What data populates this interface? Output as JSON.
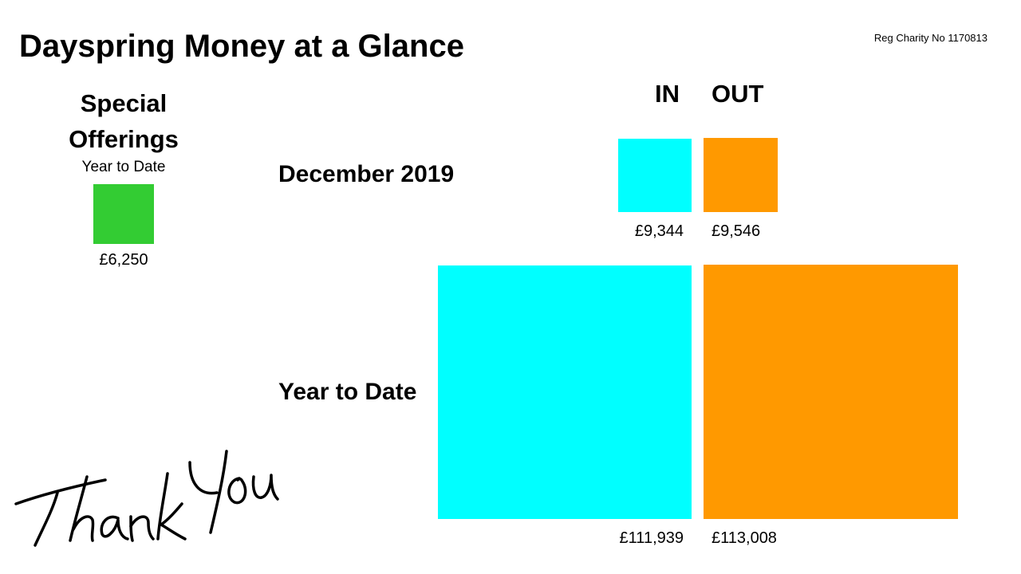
{
  "title": "Dayspring Money at a Glance",
  "charity": "Reg Charity No 1170813",
  "special_offerings": {
    "heading_line1": "Special",
    "heading_line2": "Offerings",
    "subheading": "Year to Date",
    "value": 6250,
    "label": "£6,250",
    "color": "#33CC33"
  },
  "thank_you": "Thank You",
  "chart_data": {
    "type": "bar",
    "title": "",
    "encoding": "square area proportional to value",
    "columns": [
      "IN",
      "OUT"
    ],
    "rows": [
      "December 2019",
      "Year to Date"
    ],
    "series": [
      {
        "name": "IN",
        "color": "#00FFFF",
        "values": [
          9344,
          111939
        ],
        "labels": [
          "£9,344",
          "£111,939"
        ]
      },
      {
        "name": "OUT",
        "color": "#FF9900",
        "values": [
          9546,
          113008
        ],
        "labels": [
          "£9,546",
          "£113,008"
        ]
      }
    ]
  }
}
